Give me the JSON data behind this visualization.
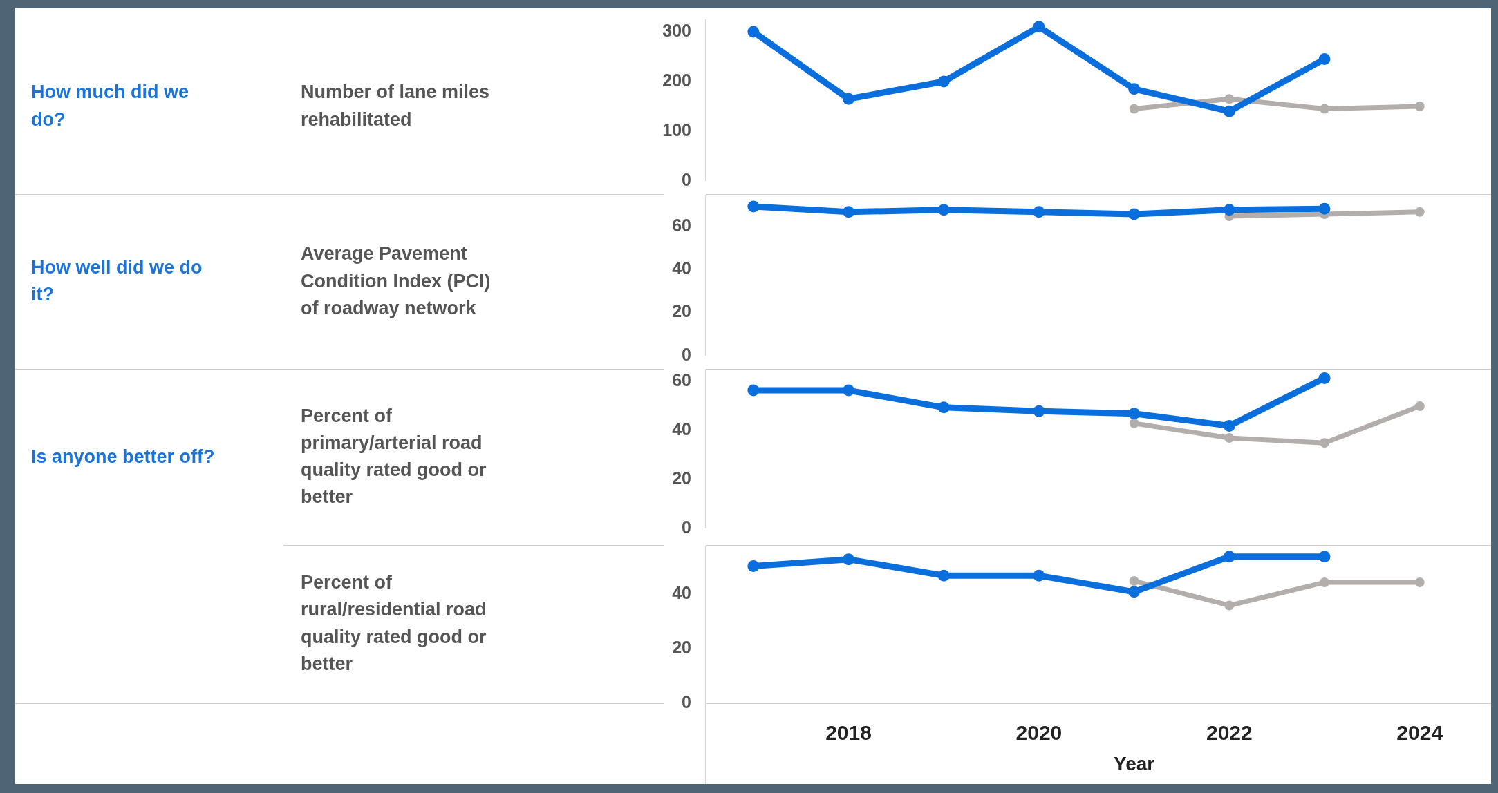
{
  "chart_data": [
    {
      "type": "line",
      "annotations": [
        "How much did we do?"
      ],
      "ylabel": "Number of lane miles rehabilitated",
      "xlim": [
        2016.5,
        2024.75
      ],
      "ylim": [
        0,
        325
      ],
      "yticks": [
        0,
        100,
        200,
        300
      ],
      "tick_labels": "y",
      "marker": "circle",
      "series": [
        {
          "color": "#b3aeab",
          "x": [
            2021,
            2022,
            2023,
            2024
          ],
          "values": [
            145,
            165,
            145,
            150
          ]
        },
        {
          "color": "#0a6fdc",
          "x": [
            2017,
            2018,
            2019,
            2020,
            2021,
            2022,
            2023
          ],
          "values": [
            300,
            165,
            200,
            310,
            185,
            140,
            245
          ]
        }
      ]
    },
    {
      "type": "line",
      "annotations": [
        "How well did we do it?"
      ],
      "ylabel": "Average Pavement Condition Index (PCI) of roadway network",
      "xlim": [
        2016.5,
        2024.75
      ],
      "ylim": [
        0,
        75
      ],
      "yticks": [
        0,
        20,
        40,
        60
      ],
      "tick_labels": "y",
      "marker": "circle",
      "series": [
        {
          "color": "#b3aeab",
          "x": [
            2022,
            2023,
            2024
          ],
          "values": [
            65,
            66,
            67
          ]
        },
        {
          "color": "#0a6fdc",
          "x": [
            2017,
            2018,
            2019,
            2020,
            2021,
            2022,
            2023
          ],
          "values": [
            69.5,
            67,
            68,
            67,
            66,
            68,
            68.5
          ]
        }
      ]
    },
    {
      "type": "line",
      "annotations": [
        "Is anyone better off?"
      ],
      "ylabel": "Percent of primary/arterial road quality rated good or better",
      "xlim": [
        2016.5,
        2024.75
      ],
      "ylim": [
        0,
        65
      ],
      "yticks": [
        0,
        20,
        40,
        60
      ],
      "tick_labels": "y",
      "marker": "circle",
      "series": [
        {
          "color": "#b3aeab",
          "x": [
            2021,
            2022,
            2023,
            2024
          ],
          "values": [
            43,
            37,
            35,
            50
          ]
        },
        {
          "color": "#0a6fdc",
          "x": [
            2017,
            2018,
            2019,
            2020,
            2021,
            2022,
            2023
          ],
          "values": [
            56.5,
            56.5,
            49.5,
            48,
            47,
            42,
            61.5
          ]
        }
      ]
    },
    {
      "type": "line",
      "ylabel": "Percent of rural/residential road quality rated good or better",
      "xlabel": "Year",
      "xlim": [
        2016.5,
        2024.75
      ],
      "xticks": [
        2018,
        2020,
        2022,
        2024
      ],
      "ylim": [
        0,
        58
      ],
      "yticks": [
        0,
        20,
        40
      ],
      "marker": "circle",
      "series": [
        {
          "color": "#b3aeab",
          "x": [
            2021,
            2022,
            2023,
            2024
          ],
          "values": [
            45,
            36,
            44.5,
            44.5
          ]
        },
        {
          "color": "#0a6fdc",
          "x": [
            2017,
            2018,
            2019,
            2020,
            2021,
            2022,
            2023
          ],
          "values": [
            50.5,
            53,
            47,
            47,
            41,
            54,
            54
          ]
        }
      ]
    }
  ]
}
